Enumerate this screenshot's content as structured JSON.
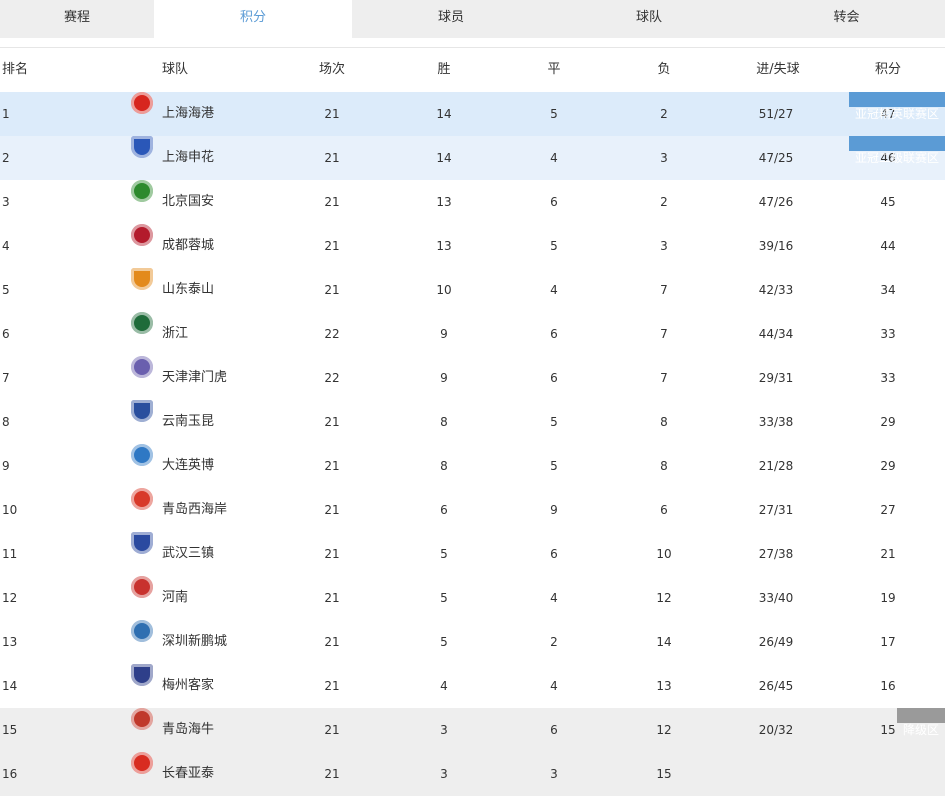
{
  "tabs": [
    "赛程",
    "积分",
    "球员",
    "球队",
    "转会"
  ],
  "header": {
    "rank": "排名",
    "team": "球队",
    "played": "场次",
    "won": "胜",
    "drawn": "平",
    "lost": "负",
    "goals": "进/失球",
    "points": "积分"
  },
  "zones": {
    "acl_elite": "亚冠精英联赛区",
    "acl_two": "亚冠二级联赛区",
    "relegation": "降级区"
  },
  "rows": [
    {
      "rank": "1",
      "team": "上海海港",
      "played": "21",
      "won": "14",
      "drawn": "5",
      "lost": "2",
      "goals": "51/27",
      "points": "47",
      "logo_color": "#d7261e",
      "logo_icon": "shanghai-port-logo-icon"
    },
    {
      "rank": "2",
      "team": "上海申花",
      "played": "21",
      "won": "14",
      "drawn": "4",
      "lost": "3",
      "goals": "47/25",
      "points": "46",
      "logo_color": "#2a57b8",
      "logo_icon": "shanghai-shenhua-logo-icon"
    },
    {
      "rank": "3",
      "team": "北京国安",
      "played": "21",
      "won": "13",
      "drawn": "6",
      "lost": "2",
      "goals": "47/26",
      "points": "45",
      "logo_color": "#2d8a2d",
      "logo_icon": "beijing-guoan-logo-icon"
    },
    {
      "rank": "4",
      "team": "成都蓉城",
      "played": "21",
      "won": "13",
      "drawn": "5",
      "lost": "3",
      "goals": "39/16",
      "points": "44",
      "logo_color": "#b31b2c",
      "logo_icon": "chengdu-rongcheng-logo-icon"
    },
    {
      "rank": "5",
      "team": "山东泰山",
      "played": "21",
      "won": "10",
      "drawn": "4",
      "lost": "7",
      "goals": "42/33",
      "points": "34",
      "logo_color": "#e38a1c",
      "logo_icon": "shandong-taishan-logo-icon"
    },
    {
      "rank": "6",
      "team": "浙江",
      "played": "22",
      "won": "9",
      "drawn": "6",
      "lost": "7",
      "goals": "44/34",
      "points": "33",
      "logo_color": "#1f6b3a",
      "logo_icon": "zhejiang-logo-icon"
    },
    {
      "rank": "7",
      "team": "天津津门虎",
      "played": "22",
      "won": "9",
      "drawn": "6",
      "lost": "7",
      "goals": "29/31",
      "points": "33",
      "logo_color": "#6a5fae",
      "logo_icon": "tianjin-jinmen-tiger-logo-icon"
    },
    {
      "rank": "8",
      "team": "云南玉昆",
      "played": "21",
      "won": "8",
      "drawn": "5",
      "lost": "8",
      "goals": "33/38",
      "points": "29",
      "logo_color": "#2a4f9e",
      "logo_icon": "yunnan-yukun-logo-icon"
    },
    {
      "rank": "9",
      "team": "大连英博",
      "played": "21",
      "won": "8",
      "drawn": "5",
      "lost": "8",
      "goals": "21/28",
      "points": "29",
      "logo_color": "#2f78c4",
      "logo_icon": "dalian-yingbo-logo-icon"
    },
    {
      "rank": "10",
      "team": "青岛西海岸",
      "played": "21",
      "won": "6",
      "drawn": "9",
      "lost": "6",
      "goals": "27/31",
      "points": "27",
      "logo_color": "#d83a2a",
      "logo_icon": "qingdao-west-coast-logo-icon"
    },
    {
      "rank": "11",
      "team": "武汉三镇",
      "played": "21",
      "won": "5",
      "drawn": "6",
      "lost": "10",
      "goals": "27/38",
      "points": "21",
      "logo_color": "#2b4aa0",
      "logo_icon": "wuhan-three-towns-logo-icon"
    },
    {
      "rank": "12",
      "team": "河南",
      "played": "21",
      "won": "5",
      "drawn": "4",
      "lost": "12",
      "goals": "33/40",
      "points": "19",
      "logo_color": "#c8322e",
      "logo_icon": "henan-logo-icon"
    },
    {
      "rank": "13",
      "team": "深圳新鹏城",
      "played": "21",
      "won": "5",
      "drawn": "2",
      "lost": "14",
      "goals": "26/49",
      "points": "17",
      "logo_color": "#2f6fb1",
      "logo_icon": "shenzhen-peng-city-logo-icon"
    },
    {
      "rank": "14",
      "team": "梅州客家",
      "played": "21",
      "won": "4",
      "drawn": "4",
      "lost": "13",
      "goals": "26/45",
      "points": "16",
      "logo_color": "#2e3f8a",
      "logo_icon": "meizhou-hakka-logo-icon"
    },
    {
      "rank": "15",
      "team": "青岛海牛",
      "played": "21",
      "won": "3",
      "drawn": "6",
      "lost": "12",
      "goals": "20/32",
      "points": "15",
      "logo_color": "#c0392b",
      "logo_icon": "qingdao-hainiu-logo-icon"
    },
    {
      "rank": "16",
      "team": "长春亚泰",
      "played": "21",
      "won": "3",
      "drawn": "3",
      "lost": "15",
      "goals": "",
      "points": "",
      "logo_color": "#d82c20",
      "logo_icon": "changchun-yatai-logo-icon"
    }
  ]
}
